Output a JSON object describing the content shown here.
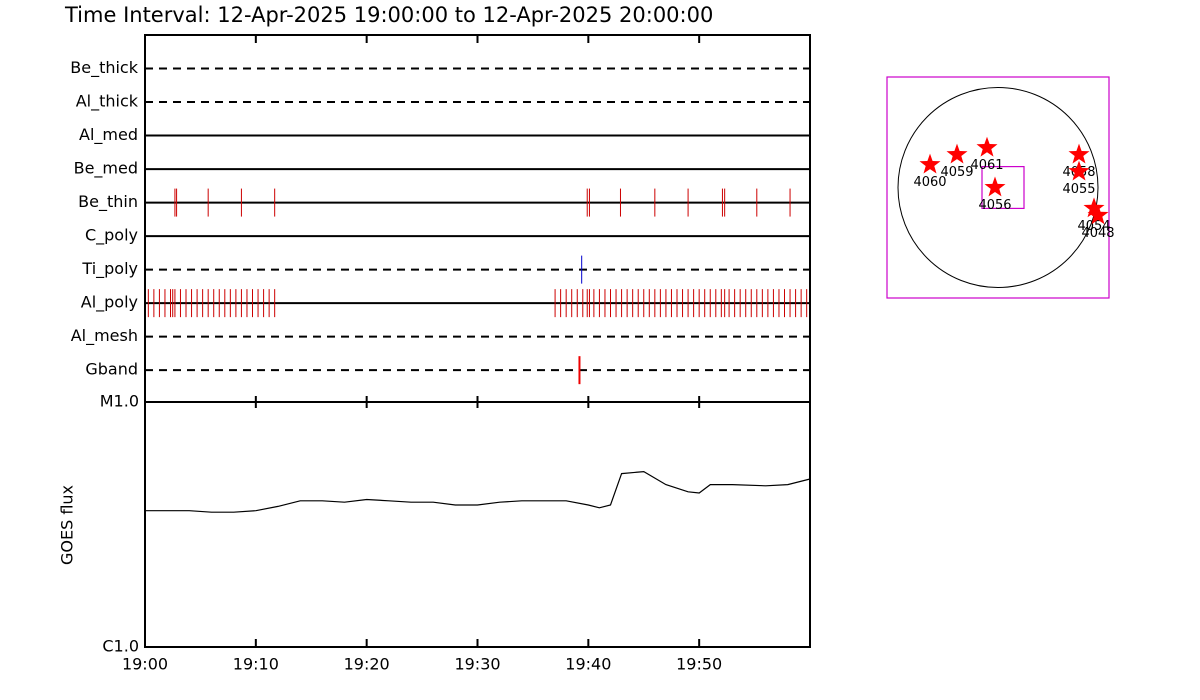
{
  "chart_data": [
    {
      "type": "timeline",
      "title": "Time Interval: 12-Apr-2025 19:00:00 to 12-Apr-2025 20:00:00",
      "xlim": [
        0,
        60
      ],
      "rows": [
        {
          "name": "Be_thick",
          "dashed": true,
          "color": "#cc0000",
          "events": []
        },
        {
          "name": "Al_thick",
          "dashed": true,
          "color": "#cc0000",
          "events": []
        },
        {
          "name": "Al_med",
          "dashed": false,
          "color": "#cc0000",
          "events": []
        },
        {
          "name": "Be_med",
          "dashed": false,
          "color": "#cc0000",
          "events": []
        },
        {
          "name": "Be_thin",
          "dashed": false,
          "color": "#cc0000",
          "events": [
            2.7,
            2.85,
            5.7,
            8.7,
            11.7,
            39.9,
            40.1,
            42.9,
            46.0,
            49.0,
            52.1,
            52.3,
            55.2,
            58.2
          ]
        },
        {
          "name": "C_poly",
          "dashed": false,
          "color": "#cc0000",
          "events": []
        },
        {
          "name": "Ti_poly",
          "dashed": true,
          "color": "#0000cc",
          "events": [
            39.4
          ]
        },
        {
          "name": "Al_poly",
          "dashed": false,
          "color": "#cc0000",
          "events": [
            0.3,
            0.8,
            1.3,
            1.8,
            2.3,
            2.5,
            2.7,
            3.2,
            3.7,
            4.2,
            4.7,
            5.2,
            5.7,
            6.2,
            6.7,
            7.2,
            7.7,
            8.2,
            8.7,
            9.2,
            9.7,
            10.2,
            10.7,
            11.2,
            11.7,
            37.0,
            37.5,
            38.0,
            38.5,
            39.0,
            39.5,
            39.9,
            40.1,
            40.5,
            41.0,
            41.5,
            42.0,
            42.5,
            43.0,
            43.5,
            44.0,
            44.5,
            45.0,
            45.5,
            46.0,
            46.5,
            47.0,
            47.5,
            48.0,
            48.5,
            49.0,
            49.5,
            50.0,
            50.5,
            51.0,
            51.5,
            52.0,
            52.3,
            52.7,
            53.2,
            53.7,
            54.2,
            54.7,
            55.2,
            55.7,
            56.2,
            56.7,
            57.2,
            57.7,
            58.2,
            58.7,
            59.2,
            59.7
          ]
        },
        {
          "name": "Al_mesh",
          "dashed": true,
          "color": "#cc0000",
          "events": []
        },
        {
          "name": "Gband",
          "dashed": true,
          "color": "#ee0000",
          "events": [
            39.2
          ]
        }
      ]
    },
    {
      "type": "line",
      "ylabel": "GOES flux",
      "log": true,
      "xlim": [
        0,
        60
      ],
      "xticks": [
        {
          "value": 0,
          "label": "19:00"
        },
        {
          "value": 10,
          "label": "19:10"
        },
        {
          "value": 20,
          "label": "19:20"
        },
        {
          "value": 30,
          "label": "19:30"
        },
        {
          "value": 40,
          "label": "19:40"
        },
        {
          "value": 50,
          "label": "19:50"
        }
      ],
      "ylim": [
        1e-06,
        1e-05
      ],
      "yticks": [
        {
          "value": 1e-06,
          "label": "C1.0"
        },
        {
          "value": 1e-05,
          "label": "M1.0"
        }
      ],
      "color": "#000000",
      "x": [
        0,
        2,
        4,
        6,
        8,
        10,
        12,
        14,
        16,
        18,
        20,
        22,
        24,
        26,
        28,
        30,
        32,
        34,
        36,
        38,
        40,
        41,
        42,
        43,
        45,
        47,
        49,
        50,
        51,
        53,
        56,
        58,
        60
      ],
      "values": [
        3.6e-06,
        3.6e-06,
        3.6e-06,
        3.55e-06,
        3.55e-06,
        3.6e-06,
        3.75e-06,
        3.95e-06,
        3.95e-06,
        3.9e-06,
        4e-06,
        3.95e-06,
        3.9e-06,
        3.9e-06,
        3.8e-06,
        3.8e-06,
        3.9e-06,
        3.95e-06,
        3.95e-06,
        3.95e-06,
        3.8e-06,
        3.7e-06,
        3.8e-06,
        5.1e-06,
        5.2e-06,
        4.6e-06,
        4.3e-06,
        4.25e-06,
        4.6e-06,
        4.6e-06,
        4.55e-06,
        4.6e-06,
        4.85e-06
      ]
    },
    {
      "type": "map",
      "xlim": [
        -1.11,
        1.11
      ],
      "ylim": [
        -1.11,
        1.11
      ],
      "fov_x": [
        -0.16,
        0.26
      ],
      "fov_y": [
        -0.21,
        0.21
      ],
      "color": "#ff0000",
      "labels": [
        "4060",
        "4059",
        "4061",
        "4056",
        "4058",
        "4055",
        "4054",
        "4048"
      ],
      "x": [
        -0.68,
        -0.41,
        -0.11,
        -0.03,
        0.81,
        0.81,
        0.96,
        1.0
      ],
      "y": [
        0.23,
        0.33,
        0.4,
        0.0,
        0.33,
        0.16,
        -0.21,
        -0.28
      ]
    }
  ]
}
